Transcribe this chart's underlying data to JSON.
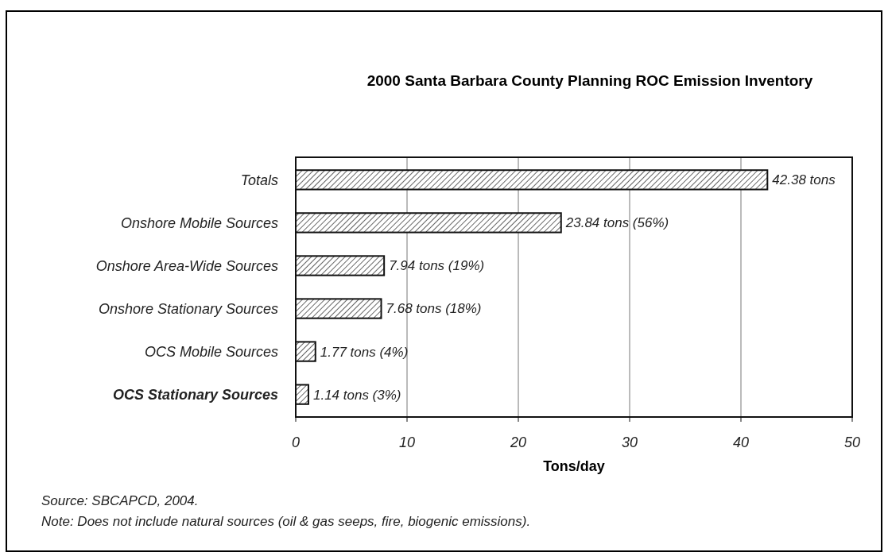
{
  "chart_data": {
    "type": "bar",
    "orientation": "horizontal",
    "title": "2000 Santa Barbara County Planning ROC Emission Inventory",
    "xlabel": "Tons/day",
    "categories": [
      "Totals",
      "Onshore Mobile Sources",
      "Onshore Area-Wide Sources",
      "Onshore Stationary Sources",
      "OCS Mobile Sources",
      "OCS Stationary Sources"
    ],
    "values": [
      42.38,
      23.84,
      7.94,
      7.68,
      1.77,
      1.14
    ],
    "value_labels": [
      "42.38 tons",
      "23.84 tons (56%)",
      "7.94 tons (19%)",
      "7.68 tons (18%)",
      "1.77 tons (4%)",
      "1.14 tons (3%)"
    ],
    "color": "#111111",
    "xlim": [
      0,
      50
    ],
    "xticks": [
      0,
      10,
      20,
      30,
      40,
      50
    ],
    "grid": "x",
    "annotations": [
      "Source: SBCAPCD, 2004.",
      "Note: Does not include natural sources (oil & gas seeps, fire, biogenic emissions)."
    ]
  }
}
